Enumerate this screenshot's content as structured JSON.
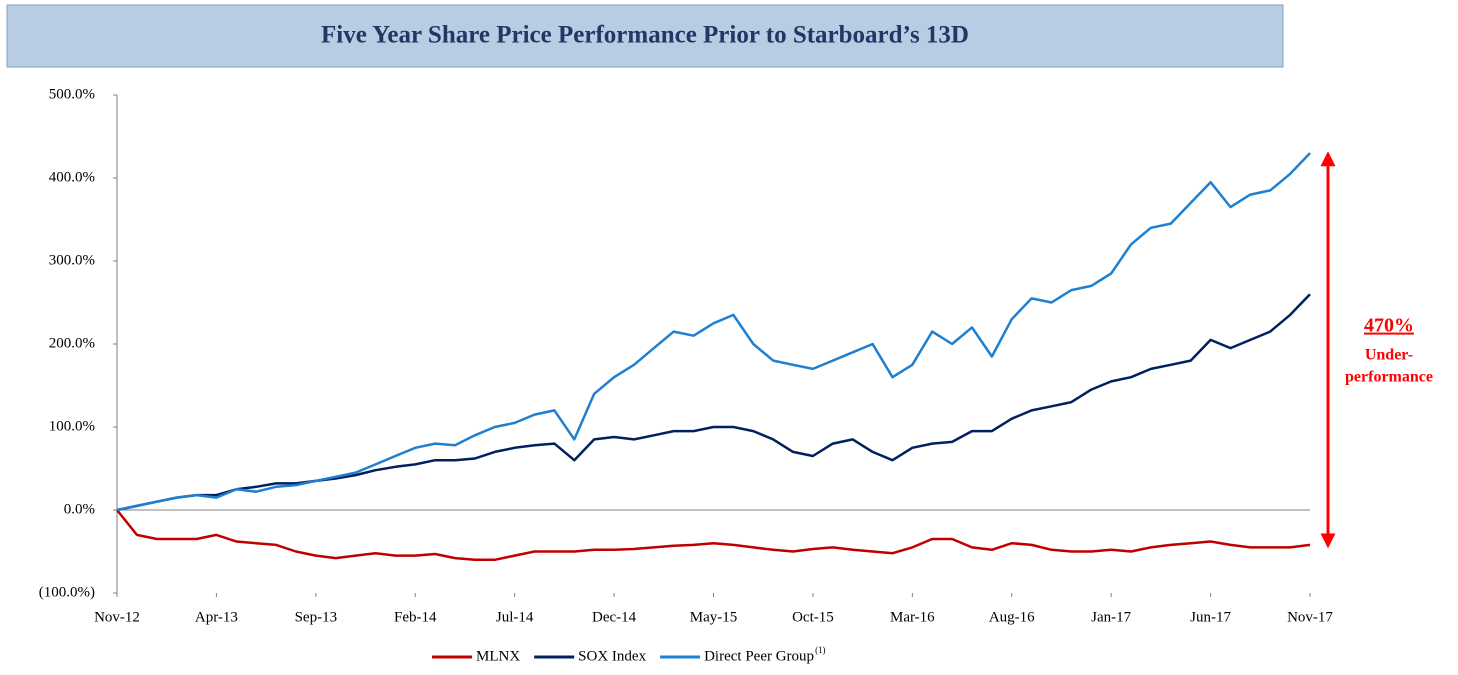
{
  "chart_data": {
    "type": "line",
    "title": "Five Year Share Price Performance Prior to Starboard’s 13D",
    "x": [
      "2012-11",
      "2012-12",
      "2013-01",
      "2013-02",
      "2013-03",
      "2013-04",
      "2013-05",
      "2013-06",
      "2013-07",
      "2013-08",
      "2013-09",
      "2013-10",
      "2013-11",
      "2013-12",
      "2014-01",
      "2014-02",
      "2014-03",
      "2014-04",
      "2014-05",
      "2014-06",
      "2014-07",
      "2014-08",
      "2014-09",
      "2014-10",
      "2014-11",
      "2014-12",
      "2015-01",
      "2015-02",
      "2015-03",
      "2015-04",
      "2015-05",
      "2015-06",
      "2015-07",
      "2015-08",
      "2015-09",
      "2015-10",
      "2015-11",
      "2015-12",
      "2016-01",
      "2016-02",
      "2016-03",
      "2016-04",
      "2016-05",
      "2016-06",
      "2016-07",
      "2016-08",
      "2016-09",
      "2016-10",
      "2016-11",
      "2016-12",
      "2017-01",
      "2017-02",
      "2017-03",
      "2017-04",
      "2017-05",
      "2017-06",
      "2017-07",
      "2017-08",
      "2017-09",
      "2017-10",
      "2017-11"
    ],
    "series": [
      {
        "name": "MLNX",
        "color": "#c00000",
        "values": [
          0,
          -30,
          -35,
          -35,
          -35,
          -30,
          -38,
          -40,
          -42,
          -50,
          -55,
          -58,
          -55,
          -52,
          -55,
          -55,
          -53,
          -58,
          -60,
          -60,
          -55,
          -50,
          -50,
          -50,
          -48,
          -48,
          -47,
          -45,
          -43,
          -42,
          -40,
          -42,
          -45,
          -48,
          -50,
          -47,
          -45,
          -48,
          -50,
          -52,
          -45,
          -35,
          -35,
          -45,
          -48,
          -40,
          -42,
          -48,
          -50,
          -50,
          -48,
          -50,
          -45,
          -42,
          -40,
          -38,
          -42,
          -45,
          -45,
          -45,
          -42
        ]
      },
      {
        "name": "SOX Index",
        "color": "#002060",
        "values": [
          0,
          5,
          10,
          15,
          18,
          18,
          25,
          28,
          32,
          32,
          35,
          38,
          42,
          48,
          52,
          55,
          60,
          60,
          62,
          70,
          75,
          78,
          80,
          60,
          85,
          88,
          85,
          90,
          95,
          95,
          100,
          100,
          95,
          85,
          70,
          65,
          80,
          85,
          70,
          60,
          75,
          80,
          82,
          95,
          95,
          110,
          120,
          125,
          130,
          145,
          155,
          160,
          170,
          175,
          180,
          205,
          195,
          205,
          215,
          235,
          260
        ]
      },
      {
        "name": "Direct Peer Group",
        "legend_superscript": "(1)",
        "color": "#1f7fd0",
        "values": [
          0,
          5,
          10,
          15,
          18,
          15,
          25,
          22,
          28,
          30,
          35,
          40,
          45,
          55,
          65,
          75,
          80,
          78,
          90,
          100,
          105,
          115,
          120,
          85,
          140,
          160,
          175,
          195,
          215,
          210,
          225,
          235,
          200,
          180,
          175,
          170,
          180,
          190,
          200,
          160,
          175,
          215,
          200,
          220,
          185,
          230,
          255,
          250,
          265,
          270,
          285,
          320,
          340,
          345,
          370,
          395,
          365,
          380,
          385,
          405,
          430
        ]
      }
    ],
    "ylim": [
      -100,
      500
    ],
    "yticks": [
      {
        "value": 500,
        "label": "500.0%"
      },
      {
        "value": 400,
        "label": "400.0%"
      },
      {
        "value": 300,
        "label": "300.0%"
      },
      {
        "value": 200,
        "label": "200.0%"
      },
      {
        "value": 100,
        "label": "100.0%"
      },
      {
        "value": 0,
        "label": "0.0%"
      },
      {
        "value": -100,
        "label": "(100.0%)"
      }
    ],
    "xticks": [
      {
        "value": "2012-11",
        "label": "Nov-12"
      },
      {
        "value": "2013-04",
        "label": "Apr-13"
      },
      {
        "value": "2013-09",
        "label": "Sep-13"
      },
      {
        "value": "2014-02",
        "label": "Feb-14"
      },
      {
        "value": "2014-07",
        "label": "Jul-14"
      },
      {
        "value": "2014-12",
        "label": "Dec-14"
      },
      {
        "value": "2015-05",
        "label": "May-15"
      },
      {
        "value": "2015-10",
        "label": "Oct-15"
      },
      {
        "value": "2016-03",
        "label": "Mar-16"
      },
      {
        "value": "2016-08",
        "label": "Aug-16"
      },
      {
        "value": "2017-01",
        "label": "Jan-17"
      },
      {
        "value": "2017-06",
        "label": "Jun-17"
      },
      {
        "value": "2017-11",
        "label": "Nov-17"
      }
    ],
    "annotation": {
      "value": 470,
      "value_label": "470%",
      "lines": [
        "Under-",
        "performance"
      ]
    },
    "legend": "bottom"
  }
}
